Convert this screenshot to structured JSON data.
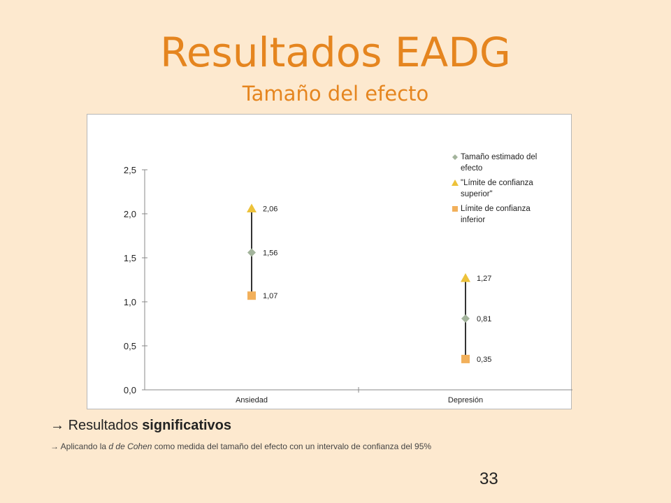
{
  "slide": {
    "title": "Resultados EADG",
    "subtitle": "Tamaño del efecto",
    "bullet_arrow": "→",
    "bullet_main_prefix": "Resultados ",
    "bullet_main_bold": "significativos",
    "bullet_sub_arrow": "→",
    "bullet_sub_prefix": "Aplicando la ",
    "bullet_sub_italic": "d de Cohen",
    "bullet_sub_suffix": " como medida del tamaño del efecto con un intervalo de confianza del 95%",
    "page_number": "33"
  },
  "chart_data": {
    "type": "scatter",
    "categories": [
      "Ansiedad",
      "Depresión"
    ],
    "ylim": [
      0,
      2.5
    ],
    "yticks": [
      "0,0",
      "0,5",
      "1,0",
      "1,5",
      "2,0",
      "2,5"
    ],
    "ytick_values": [
      0,
      0.5,
      1.0,
      1.5,
      2.0,
      2.5
    ],
    "legend_position": "top-right",
    "series": [
      {
        "name_lines": [
          "Tamaño estimado del",
          "efecto"
        ],
        "marker": "diamond",
        "color": "#a3b49c",
        "values": [
          1.56,
          0.81
        ],
        "labels": [
          "1,56",
          "0,81"
        ]
      },
      {
        "name_lines": [
          "\"Límite de confianza",
          "superior\""
        ],
        "marker": "triangle",
        "color": "#edc23a",
        "values": [
          2.06,
          1.27
        ],
        "labels": [
          "2,06",
          "1,27"
        ]
      },
      {
        "name_lines": [
          "Límite de confianza",
          "inferior"
        ],
        "marker": "square",
        "color": "#f2b05b",
        "values": [
          1.07,
          0.35
        ],
        "labels": [
          "1,07",
          "0,35"
        ]
      }
    ]
  }
}
